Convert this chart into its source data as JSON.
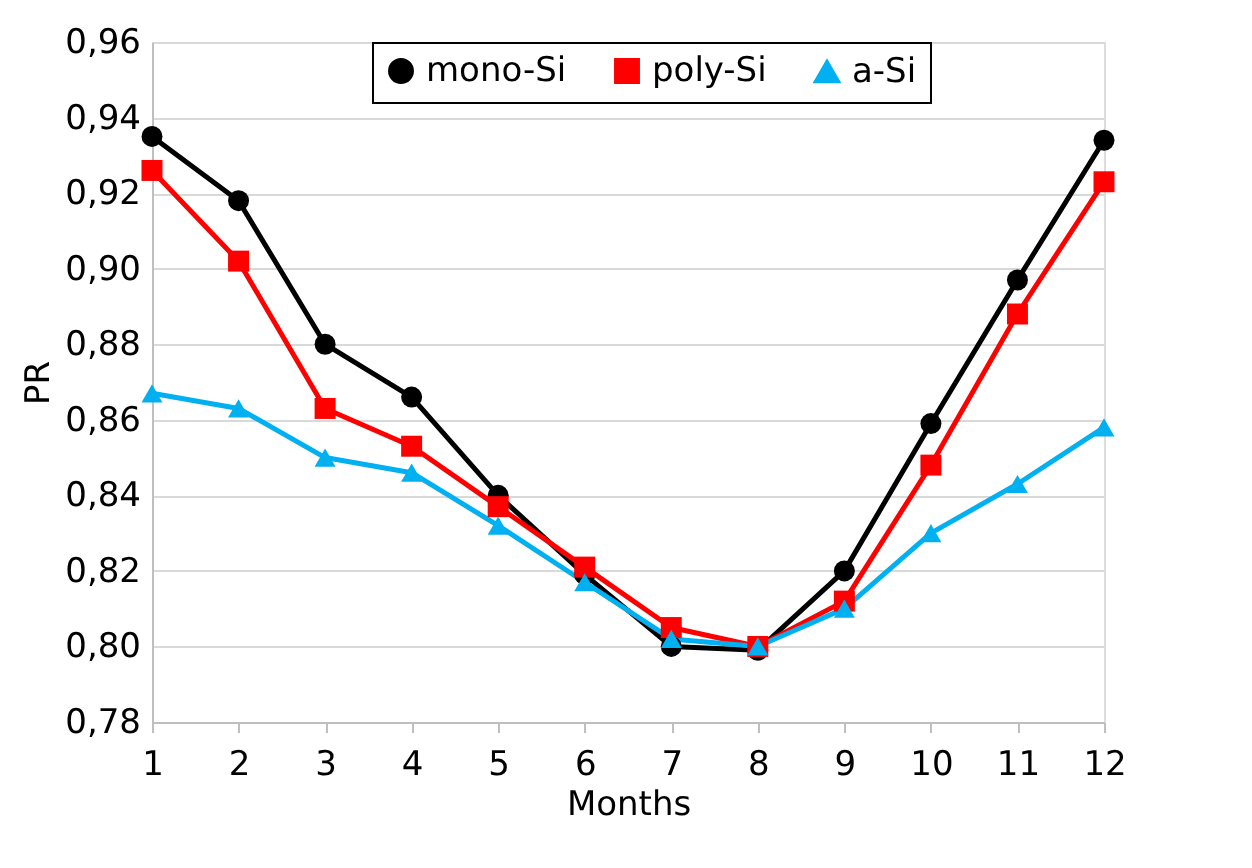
{
  "chart_data": {
    "type": "line",
    "xlabel": "Months",
    "ylabel": "PR",
    "x": [
      1,
      2,
      3,
      4,
      5,
      6,
      7,
      8,
      9,
      10,
      11,
      12
    ],
    "xlim": [
      1,
      12
    ],
    "xticks": [
      1,
      2,
      3,
      4,
      5,
      6,
      7,
      8,
      9,
      10,
      11,
      12
    ],
    "ylim": [
      0.78,
      0.96
    ],
    "yticks": [
      {
        "value": 0.78,
        "label": "0,78"
      },
      {
        "value": 0.8,
        "label": "0,80"
      },
      {
        "value": 0.82,
        "label": "0,82"
      },
      {
        "value": 0.84,
        "label": "0,84"
      },
      {
        "value": 0.86,
        "label": "0,86"
      },
      {
        "value": 0.88,
        "label": "0,88"
      },
      {
        "value": 0.9,
        "label": "0,90"
      },
      {
        "value": 0.92,
        "label": "0,92"
      },
      {
        "value": 0.94,
        "label": "0,94"
      },
      {
        "value": 0.96,
        "label": "0,96"
      }
    ],
    "grid": "y",
    "legend": "top",
    "line_style": "solid",
    "series": [
      {
        "name": "mono-Si",
        "color": "#000000",
        "marker": "circle",
        "values": [
          0.935,
          0.918,
          0.88,
          0.866,
          0.84,
          0.819,
          0.8,
          0.799,
          0.82,
          0.859,
          0.897,
          0.934
        ]
      },
      {
        "name": "poly-Si",
        "color": "#ff0000",
        "marker": "square",
        "values": [
          0.926,
          0.902,
          0.863,
          0.853,
          0.837,
          0.821,
          0.805,
          0.8,
          0.812,
          0.848,
          0.888,
          0.923
        ]
      },
      {
        "name": "a-Si",
        "color": "#00b0f0",
        "marker": "triangle",
        "values": [
          0.867,
          0.863,
          0.85,
          0.846,
          0.832,
          0.817,
          0.802,
          0.8,
          0.81,
          0.83,
          0.843,
          0.858
        ]
      }
    ]
  }
}
